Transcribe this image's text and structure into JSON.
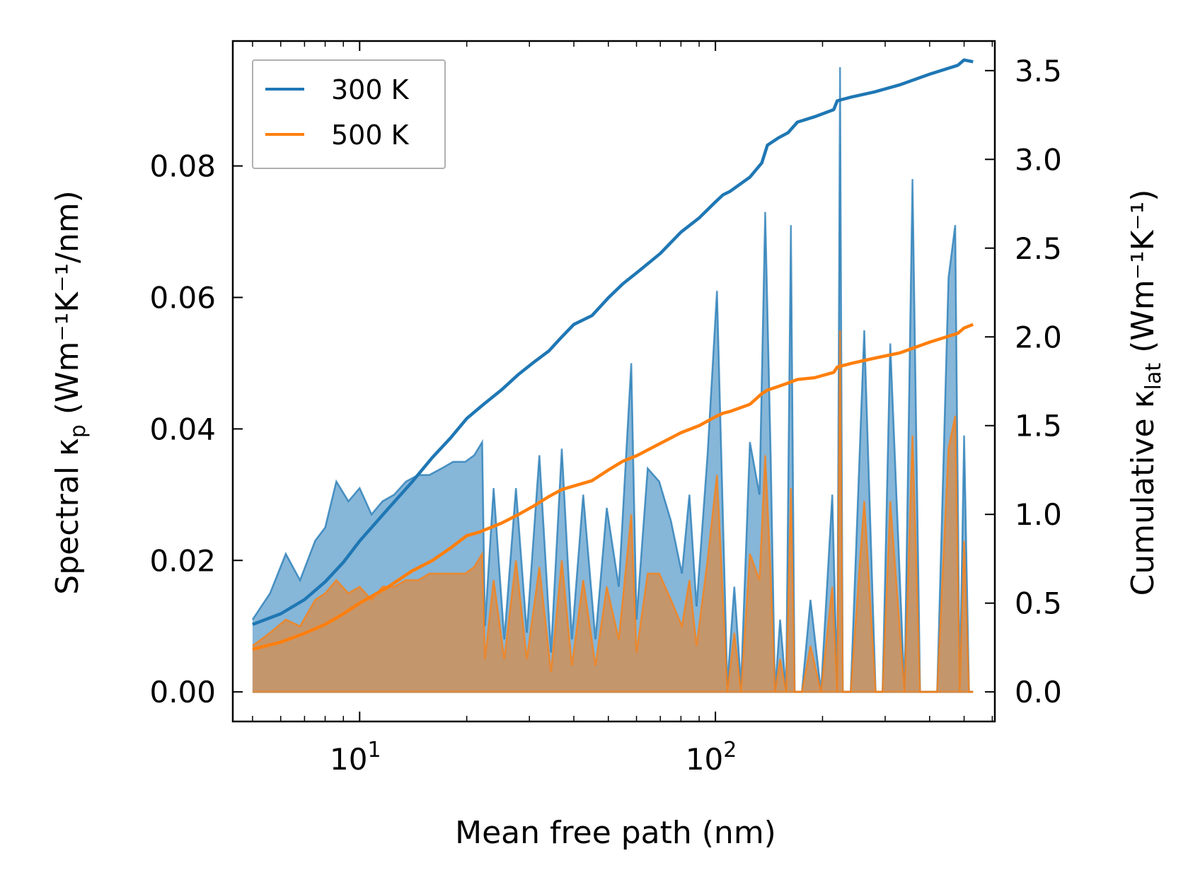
{
  "chart_data": {
    "type": "line",
    "title": "",
    "xlabel": "Mean free path (nm)",
    "ylabel_left_prefix": "Spectral κ",
    "ylabel_left_sub": "p",
    "ylabel_left_unit": "(Wm⁻¹K⁻¹/nm)",
    "ylabel_right_prefix": "Cumulative κ",
    "ylabel_right_sub": "lat",
    "ylabel_right_unit": "(Wm⁻¹K⁻¹)",
    "x_scale": "log",
    "xlim": [
      4.4,
      610
    ],
    "ylim_left": [
      -0.0045,
      0.099
    ],
    "ylim_right": [
      -0.1667,
      3.6667
    ],
    "x_major_ticks": [
      10,
      100
    ],
    "x_tick_base": "10",
    "x_tick_exponents": [
      "1",
      "2"
    ],
    "y_left_ticks": [
      0.0,
      0.02,
      0.04,
      0.06,
      0.08
    ],
    "y_left_tick_labels": [
      "0.00",
      "0.02",
      "0.04",
      "0.06",
      "0.08"
    ],
    "y_right_ticks": [
      0.0,
      0.5,
      1.0,
      1.5,
      2.0,
      2.5,
      3.0,
      3.5
    ],
    "y_right_tick_labels": [
      "0.0",
      "0.5",
      "1.0",
      "1.5",
      "2.0",
      "2.5",
      "3.0",
      "3.5"
    ],
    "legend": {
      "location": "upper-left",
      "entries": [
        {
          "label": "300 K",
          "color": "#1f77b4"
        },
        {
          "label": "500 K",
          "color": "#ff7f0e"
        }
      ]
    },
    "spectral": [
      {
        "name": "300 K",
        "color": "#1f77b4",
        "fill": "#80b2d6",
        "x": [
          5.0,
          5.6,
          6.2,
          6.8,
          7.5,
          8.0,
          8.6,
          9.3,
          10.0,
          10.8,
          11.6,
          12.5,
          13.5,
          14.6,
          15.7,
          17.0,
          18.3,
          19.8,
          21.0,
          22.1,
          22.5,
          23.8,
          25.5,
          27.5,
          29.5,
          32.0,
          34.5,
          37.0,
          39.5,
          42.5,
          46.0,
          49.5,
          53.5,
          58.0,
          60.0,
          64.5,
          69.5,
          75.0,
          80.5,
          84.5,
          88.5,
          95.0,
          101.0,
          104.0,
          108.0,
          113.0,
          118.0,
          125.0,
          133.0,
          138.0,
          143.0,
          147.0,
          152.0,
          158.0,
          163.0,
          167.0,
          175.0,
          185.0,
          198.0,
          213.0,
          220.0,
          224.0,
          228.0,
          240.0,
          262.0,
          282.0,
          295.0,
          310.0,
          340.0,
          358.0,
          376.0,
          420.0,
          452.0,
          472.0,
          486.0,
          500.0,
          516.0,
          530.0
        ],
        "y": [
          0.011,
          0.015,
          0.021,
          0.017,
          0.023,
          0.025,
          0.032,
          0.029,
          0.031,
          0.027,
          0.029,
          0.03,
          0.032,
          0.033,
          0.033,
          0.034,
          0.035,
          0.035,
          0.036,
          0.038,
          0.01,
          0.031,
          0.008,
          0.031,
          0.009,
          0.036,
          0.006,
          0.037,
          0.008,
          0.03,
          0.008,
          0.028,
          0.016,
          0.05,
          0.011,
          0.034,
          0.032,
          0.026,
          0.018,
          0.03,
          0.013,
          0.036,
          0.061,
          0.035,
          0.001,
          0.016,
          0.001,
          0.038,
          0.03,
          0.073,
          0.036,
          0.0,
          0.011,
          0.0,
          0.071,
          0.0,
          0.0,
          0.014,
          0.0,
          0.03,
          0.0,
          0.095,
          0.0,
          0.0,
          0.055,
          0.0,
          0.0,
          0.053,
          0.0,
          0.078,
          0.0,
          0.0,
          0.063,
          0.071,
          0.0,
          0.039,
          0.0,
          0.0
        ]
      },
      {
        "name": "500 K",
        "color": "#ff7f0e",
        "fill": "#c4966c",
        "x": [
          5.0,
          5.6,
          6.2,
          6.8,
          7.5,
          8.0,
          8.6,
          9.3,
          10.0,
          10.8,
          11.6,
          12.5,
          13.5,
          14.6,
          15.7,
          17.0,
          18.3,
          19.8,
          21.0,
          22.1,
          22.5,
          23.8,
          25.5,
          27.5,
          29.5,
          32.0,
          34.5,
          37.0,
          39.5,
          42.5,
          46.0,
          49.5,
          53.5,
          58.0,
          60.0,
          64.5,
          69.5,
          75.0,
          80.5,
          84.5,
          88.5,
          95.0,
          101.0,
          104.0,
          108.0,
          113.0,
          118.0,
          125.0,
          133.0,
          138.0,
          143.0,
          147.0,
          152.0,
          158.0,
          163.0,
          167.0,
          175.0,
          185.0,
          198.0,
          213.0,
          220.0,
          224.0,
          228.0,
          240.0,
          262.0,
          282.0,
          295.0,
          310.0,
          340.0,
          358.0,
          376.0,
          420.0,
          452.0,
          472.0,
          486.0,
          500.0,
          516.0,
          530.0
        ],
        "y": [
          0.007,
          0.009,
          0.011,
          0.01,
          0.014,
          0.015,
          0.017,
          0.015,
          0.016,
          0.014,
          0.016,
          0.016,
          0.017,
          0.017,
          0.018,
          0.018,
          0.018,
          0.018,
          0.019,
          0.021,
          0.005,
          0.017,
          0.005,
          0.02,
          0.005,
          0.019,
          0.003,
          0.02,
          0.004,
          0.017,
          0.004,
          0.016,
          0.008,
          0.027,
          0.006,
          0.018,
          0.018,
          0.014,
          0.01,
          0.017,
          0.007,
          0.02,
          0.033,
          0.019,
          0.0,
          0.009,
          0.0,
          0.021,
          0.017,
          0.036,
          0.018,
          0.0,
          0.005,
          0.0,
          0.031,
          0.0,
          0.0,
          0.007,
          0.0,
          0.016,
          0.0,
          0.055,
          0.0,
          0.0,
          0.029,
          0.0,
          0.0,
          0.029,
          0.0,
          0.039,
          0.0,
          0.0,
          0.037,
          0.042,
          0.0,
          0.023,
          0.0,
          0.0
        ]
      }
    ],
    "cumulative": [
      {
        "name": "300 K",
        "color": "#1f77b4",
        "x": [
          5.0,
          6.0,
          7.0,
          8.0,
          9.0,
          10.0,
          12.0,
          14.0,
          16.0,
          18.0,
          20.0,
          21.7,
          22.3,
          25.0,
          28.0,
          31.0,
          34.0,
          37.0,
          40.0,
          45.0,
          50.0,
          55.0,
          60.0,
          70.0,
          80.0,
          90.0,
          100.0,
          105.0,
          110.0,
          125.0,
          135.0,
          140.0,
          150.0,
          160.0,
          170.0,
          190.0,
          215.0,
          220.0,
          240.0,
          280.0,
          330.0,
          400.0,
          480.0,
          500.0,
          530.0
        ],
        "y": [
          0.38,
          0.44,
          0.52,
          0.62,
          0.73,
          0.85,
          1.03,
          1.18,
          1.32,
          1.43,
          1.54,
          1.6,
          1.62,
          1.7,
          1.79,
          1.86,
          1.92,
          2.0,
          2.07,
          2.12,
          2.22,
          2.3,
          2.36,
          2.47,
          2.59,
          2.67,
          2.76,
          2.8,
          2.82,
          2.9,
          2.98,
          3.08,
          3.12,
          3.15,
          3.21,
          3.24,
          3.28,
          3.33,
          3.35,
          3.38,
          3.42,
          3.48,
          3.53,
          3.56,
          3.55
        ]
      },
      {
        "name": "500 K",
        "color": "#ff7f0e",
        "x": [
          5.0,
          6.0,
          7.0,
          8.0,
          9.0,
          10.0,
          12.0,
          14.0,
          16.0,
          18.0,
          20.0,
          21.7,
          22.3,
          25.0,
          28.0,
          31.0,
          34.0,
          37.0,
          40.0,
          45.0,
          50.0,
          55.0,
          60.0,
          70.0,
          80.0,
          90.0,
          100.0,
          105.0,
          110.0,
          125.0,
          135.0,
          140.0,
          150.0,
          160.0,
          170.0,
          190.0,
          215.0,
          220.0,
          240.0,
          280.0,
          330.0,
          400.0,
          480.0,
          500.0,
          530.0
        ],
        "y": [
          0.24,
          0.28,
          0.33,
          0.38,
          0.44,
          0.5,
          0.59,
          0.68,
          0.74,
          0.81,
          0.88,
          0.9,
          0.91,
          0.95,
          1.0,
          1.05,
          1.1,
          1.14,
          1.16,
          1.19,
          1.25,
          1.3,
          1.33,
          1.4,
          1.46,
          1.5,
          1.55,
          1.57,
          1.58,
          1.62,
          1.68,
          1.7,
          1.72,
          1.74,
          1.76,
          1.77,
          1.8,
          1.83,
          1.85,
          1.88,
          1.91,
          1.97,
          2.02,
          2.05,
          2.07
        ]
      }
    ]
  }
}
